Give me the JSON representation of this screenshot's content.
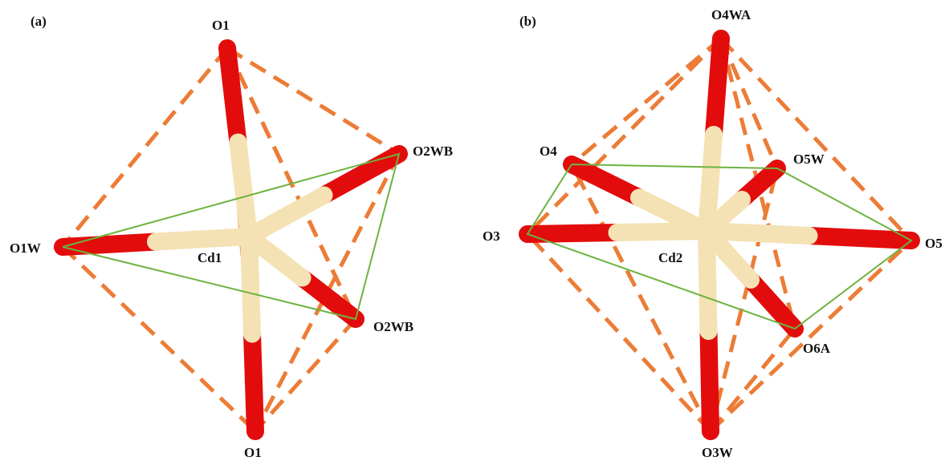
{
  "panels": [
    {
      "label": "(a)",
      "center": "Cd1",
      "atoms": [
        "O1",
        "O2WB",
        "O1W",
        "O2WB",
        "O1"
      ]
    },
    {
      "label": "(b)",
      "center": "Cd2",
      "atoms": [
        "O4WA",
        "O4",
        "O5W",
        "O3",
        "O5",
        "O6A",
        "O3W"
      ]
    }
  ]
}
